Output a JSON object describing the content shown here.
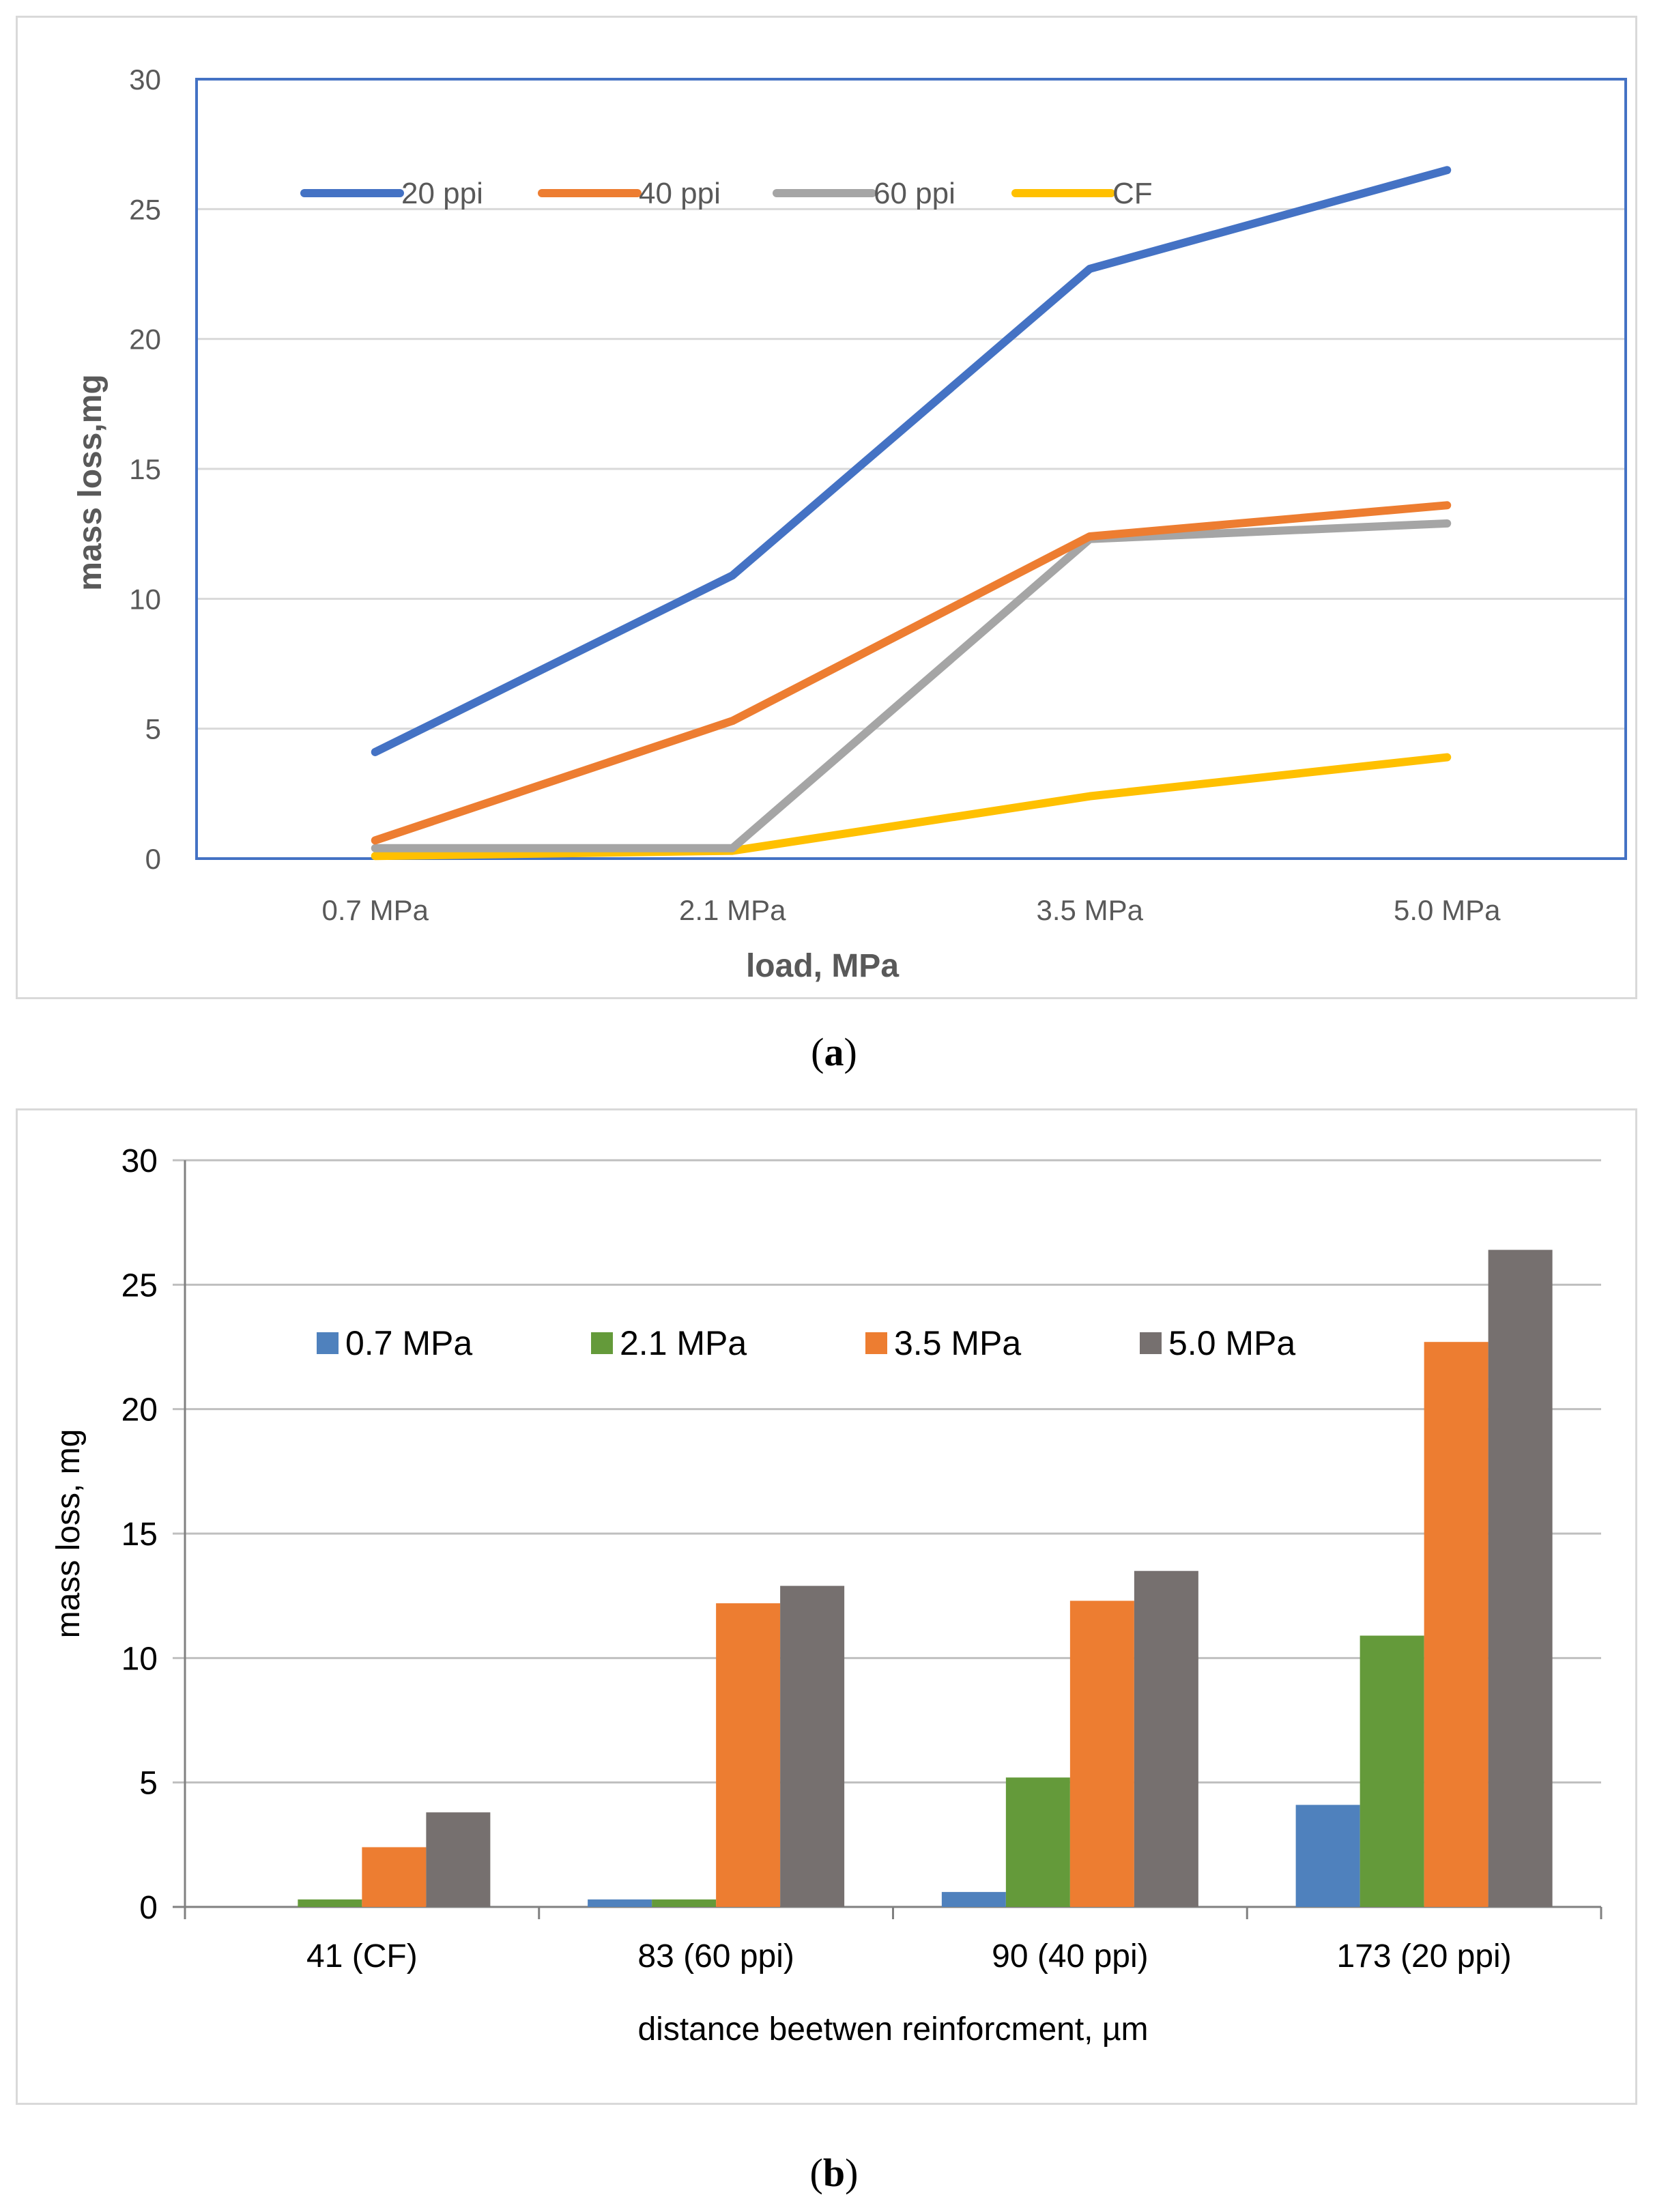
{
  "captions": {
    "a_letter": "a",
    "b_letter": "b"
  },
  "chart_data": [
    {
      "type": "line",
      "categories": [
        "0.7 MPa",
        "2.1 MPa",
        "3.5 MPa",
        "5.0 MPa"
      ],
      "series": [
        {
          "name": "20 ppi",
          "color": "#4472c4",
          "values": [
            4.1,
            10.9,
            22.7,
            26.5
          ]
        },
        {
          "name": "40 ppi",
          "color": "#ed7d31",
          "values": [
            0.7,
            5.3,
            12.4,
            13.6
          ]
        },
        {
          "name": "60 ppi",
          "color": "#a5a5a5",
          "values": [
            0.4,
            0.4,
            12.3,
            12.9
          ]
        },
        {
          "name": "CF",
          "color": "#ffc000",
          "values": [
            0.1,
            0.3,
            2.4,
            3.9
          ]
        }
      ],
      "title": "",
      "xlabel": "load, MPa",
      "ylabel": "mass loss,mg",
      "ylim": [
        0,
        30
      ],
      "yticks": [
        "0",
        "5",
        "10",
        "15",
        "20",
        "25",
        "30"
      ],
      "grid": true,
      "legend_position": "top-left",
      "plot_border_color": "#4472c4"
    },
    {
      "type": "bar",
      "categories": [
        "41 (CF)",
        "83 (60 ppi)",
        "90 (40 ppi)",
        "173 (20 ppi)"
      ],
      "series": [
        {
          "name": "0.7 MPa",
          "color": "#4f81bd",
          "values": [
            0.0,
            0.3,
            0.6,
            4.1
          ]
        },
        {
          "name": "2.1 MPa",
          "color": "#649a3a",
          "values": [
            0.3,
            0.3,
            5.2,
            10.9
          ]
        },
        {
          "name": "3.5 MPa",
          "color": "#ed7d31",
          "values": [
            2.4,
            12.2,
            12.3,
            22.7
          ]
        },
        {
          "name": "5.0 MPa",
          "color": "#76706f",
          "values": [
            3.8,
            12.9,
            13.5,
            26.4
          ]
        }
      ],
      "title": "",
      "xlabel": "distance beetwen reinforcment, µm",
      "ylabel": "mass loss, mg",
      "ylim": [
        0,
        30
      ],
      "yticks": [
        "0",
        "5",
        "10",
        "15",
        "20",
        "25",
        "30"
      ],
      "grid": true,
      "legend_position": "top"
    }
  ]
}
